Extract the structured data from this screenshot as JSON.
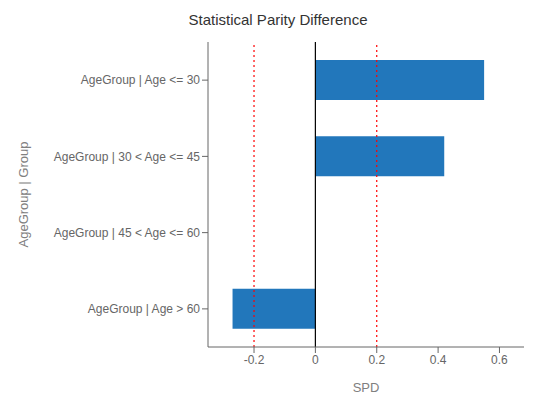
{
  "chart_data": {
    "type": "bar",
    "orientation": "horizontal",
    "title": "Statistical Parity Difference",
    "x_label": "SPD",
    "y_label": "AgeGroup | Group",
    "categories": [
      "AgeGroup | Age > 60",
      "AgeGroup | 45 < Age <= 60",
      "AgeGroup | 30 < Age <= 45",
      "AgeGroup | Age <= 30"
    ],
    "values": [
      -0.27,
      0.0,
      0.42,
      0.55
    ],
    "color": "#2277BB",
    "xlim": [
      -0.35,
      0.68
    ],
    "xticks": [
      -0.2,
      0,
      0.2,
      0.4,
      0.6
    ],
    "grid": false,
    "reference_lines": [
      {
        "value": -0.2,
        "color": "#FF0000",
        "line_style": "dotted"
      },
      {
        "value": 0.2,
        "color": "#FF0000",
        "line_style": "dotted"
      },
      {
        "value": 0,
        "color": "#000000",
        "line_style": "solid"
      }
    ]
  }
}
